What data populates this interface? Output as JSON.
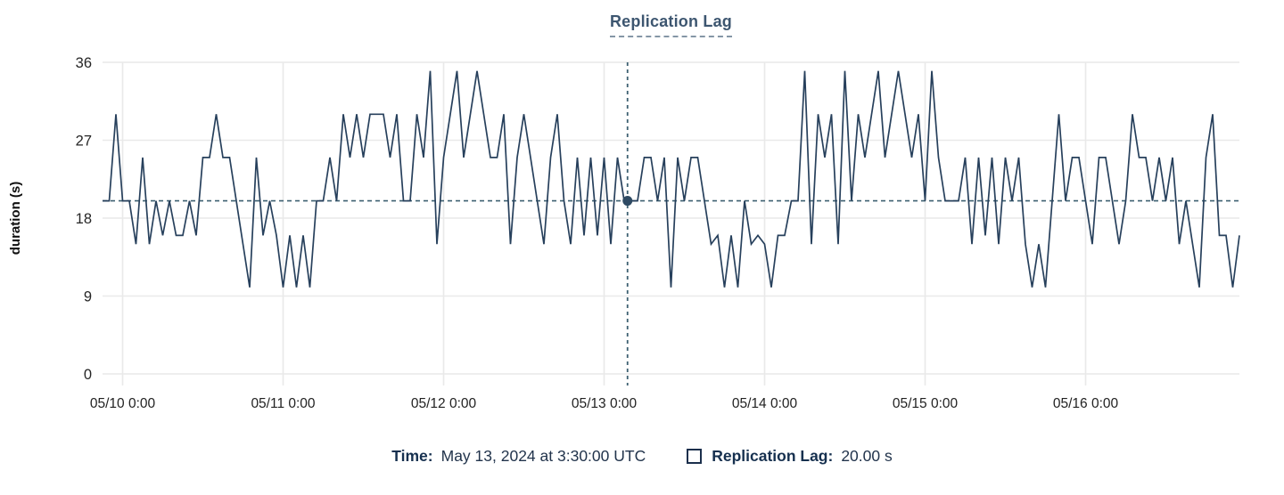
{
  "title": {
    "text": "Replication Lag"
  },
  "footer": {
    "time_label": "Time:",
    "time_value": "May 13, 2024 at 3:30:00 UTC",
    "series_label": "Replication Lag:",
    "series_value": "20.00 s",
    "legend_swatch": "hollow-square"
  },
  "colors": {
    "series_line": "#27405c",
    "crosshair": "#3d6071",
    "crosshair_dot": "#2e4a63",
    "grid": "#e9e9e9",
    "title": "#3d5670",
    "footer_text": "#1b2f4c",
    "tick_text": "#262626"
  },
  "chart_data": {
    "type": "line",
    "title": "Replication Lag",
    "xlabel": "",
    "ylabel": "duration (s)",
    "ylim": [
      0,
      36
    ],
    "yticks": [
      0,
      9,
      18,
      27,
      36
    ],
    "grid": true,
    "legend_position": "bottom",
    "x_start": "2024-05-09 21:00 UTC",
    "x_interval_hours": 1,
    "xticks": [
      {
        "index": 3,
        "label": "05/10 0:00"
      },
      {
        "index": 27,
        "label": "05/11 0:00"
      },
      {
        "index": 51,
        "label": "05/12 0:00"
      },
      {
        "index": 75,
        "label": "05/13 0:00"
      },
      {
        "index": 99,
        "label": "05/14 0:00"
      },
      {
        "index": 123,
        "label": "05/15 0:00"
      },
      {
        "index": 147,
        "label": "05/16 0:00"
      }
    ],
    "series": [
      {
        "name": "Replication Lag",
        "unit": "s",
        "values": [
          20,
          20,
          30,
          20,
          20,
          15,
          25,
          15,
          20,
          16,
          20,
          16,
          16,
          20,
          16,
          25,
          25,
          30,
          25,
          25,
          20,
          15,
          10,
          25,
          16,
          20,
          16,
          10,
          16,
          10,
          16,
          10,
          20,
          20,
          25,
          20,
          30,
          25,
          30,
          25,
          30,
          30,
          30,
          25,
          30,
          20,
          20,
          30,
          25,
          35,
          15,
          25,
          30,
          35,
          25,
          30,
          35,
          30,
          25,
          25,
          30,
          15,
          25,
          30,
          25,
          20,
          15,
          25,
          30,
          20,
          15,
          25,
          16,
          25,
          16,
          25,
          15,
          25,
          20,
          20,
          20,
          25,
          25,
          20,
          25,
          10,
          25,
          20,
          25,
          25,
          20,
          15,
          16,
          10,
          16,
          10,
          20,
          15,
          16,
          15,
          10,
          16,
          16,
          20,
          20,
          35,
          15,
          30,
          25,
          30,
          15,
          35,
          20,
          30,
          25,
          30,
          35,
          25,
          30,
          35,
          30,
          25,
          30,
          20,
          35,
          25,
          20,
          20,
          20,
          25,
          15,
          25,
          16,
          25,
          15,
          25,
          20,
          25,
          15,
          10,
          15,
          10,
          20,
          30,
          20,
          25,
          25,
          20,
          15,
          25,
          25,
          20,
          15,
          20,
          30,
          25,
          25,
          20,
          25,
          20,
          25,
          15,
          20,
          15,
          10,
          25,
          30,
          16,
          16,
          10,
          16
        ]
      }
    ],
    "crosshair": {
      "index": 78.5,
      "value": 20,
      "value_label": "20.00 s",
      "time_label": "May 13, 2024 at 3:30:00 UTC"
    }
  }
}
